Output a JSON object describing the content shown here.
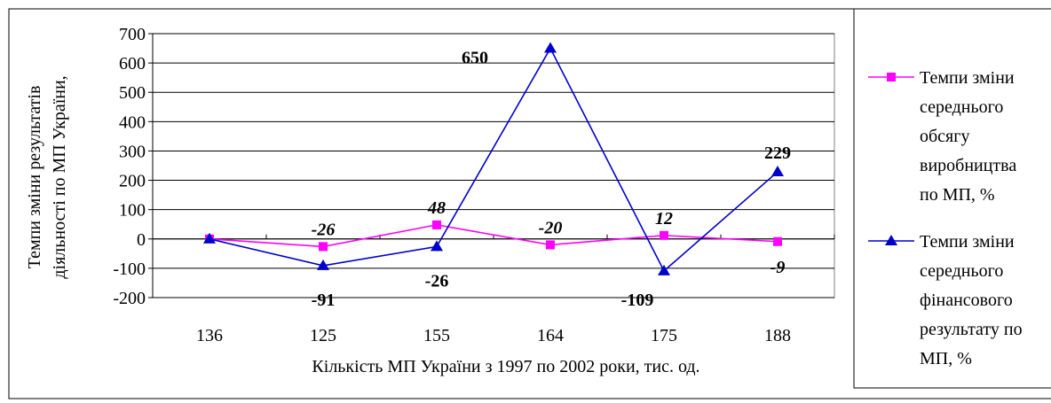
{
  "chart_data": {
    "type": "line",
    "xlabel": "Кількість МП України з 1997 по 2002 роки, тис. од.",
    "ylabel": "Темпи зміни результатів діяльності по МП України, %",
    "categories": [
      "136",
      "125",
      "155",
      "164",
      "175",
      "188"
    ],
    "series": [
      {
        "name": "Темпи зміни середнього обсягу виробництва по МП, %",
        "color": "#ff00ff",
        "marker": "square",
        "values": [
          0,
          -26,
          48,
          -20,
          12,
          -9
        ],
        "value_labels": [
          null,
          "-26",
          "48",
          "-20",
          "12",
          "-9"
        ]
      },
      {
        "name": "Темпи зміни середнього фінансового результату по МП, %",
        "color": "#0000cc",
        "marker": "triangle",
        "values": [
          0,
          -91,
          -26,
          650,
          -109,
          229
        ],
        "value_labels": [
          null,
          "-91",
          "-26",
          "650",
          "-109",
          "229"
        ]
      }
    ],
    "ylim": [
      -200,
      700
    ],
    "yticks": [
      -200,
      -100,
      0,
      100,
      200,
      300,
      400,
      500,
      600,
      700
    ],
    "grid": true,
    "legend": "right"
  }
}
